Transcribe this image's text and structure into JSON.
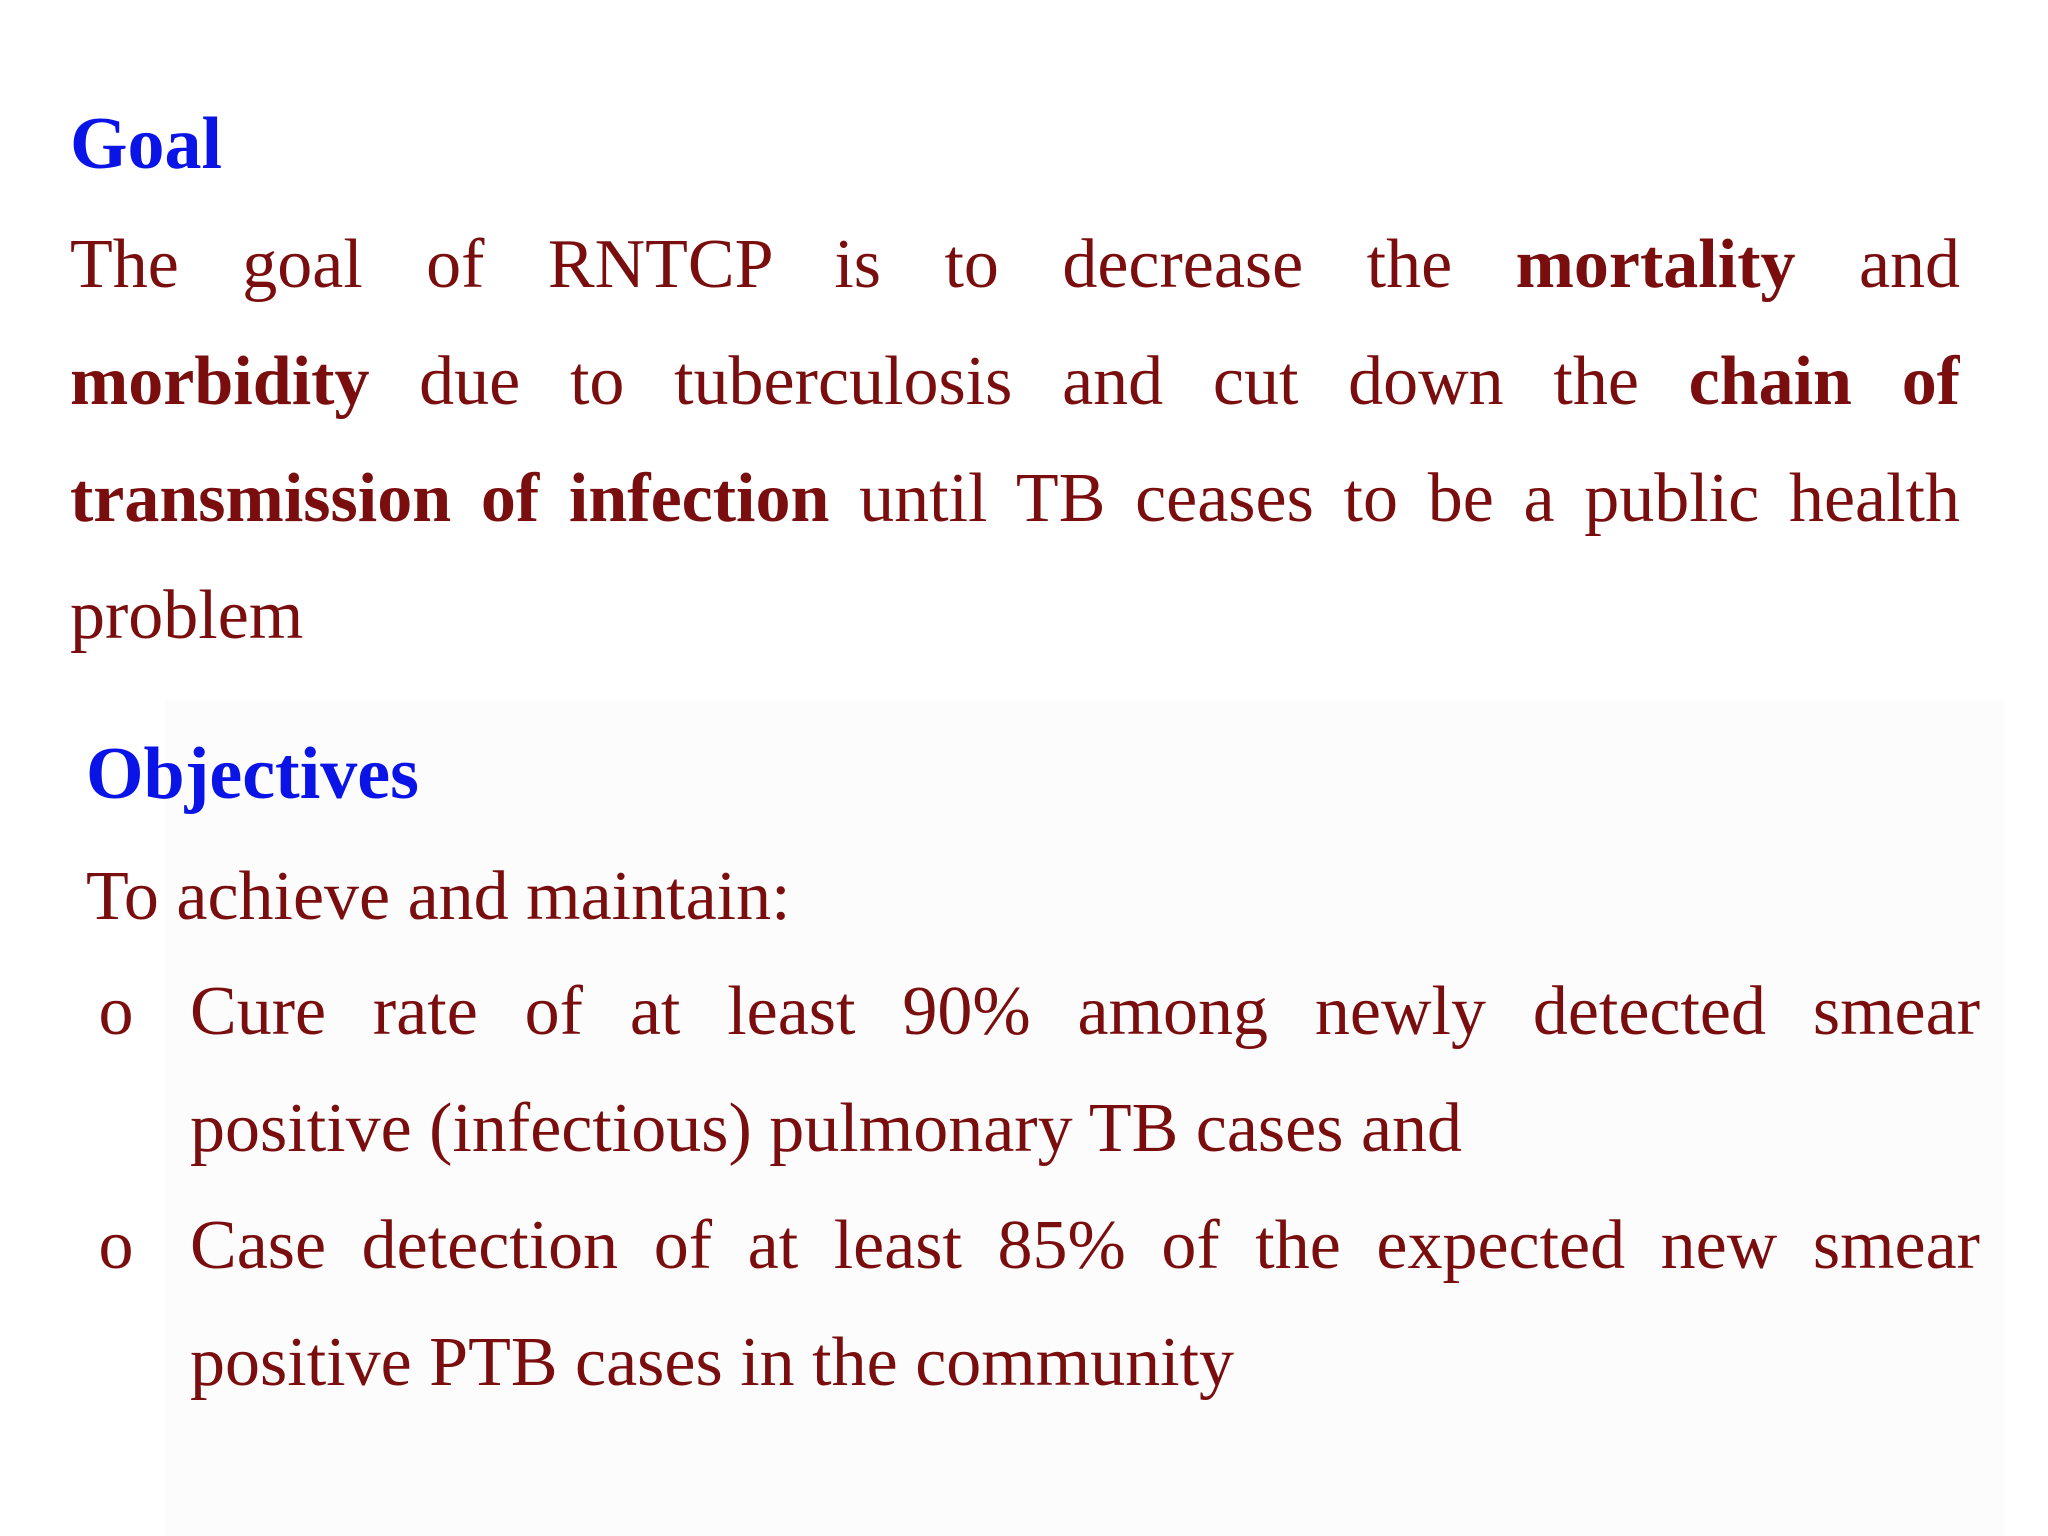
{
  "goal": {
    "heading": "Goal",
    "line1": {
      "pre": "The goal of RNTCP is to decrease the",
      "bold": "mortality",
      "post": "and"
    },
    "line2": {
      "bold1": "morbidity",
      "mid": "due to tuberculosis and cut down the",
      "bold2": "chain of"
    },
    "line3": {
      "bold": "transmission of infection",
      "post": "until TB ceases to be a public health"
    },
    "line4": "problem"
  },
  "objectives": {
    "heading": "Objectives",
    "intro": "To achieve and maintain:",
    "bullet_symbol": "o",
    "items": [
      {
        "line1": "Cure rate of at least 90% among newly detected smear",
        "line2": "positive (infectious) pulmonary TB cases and"
      },
      {
        "line1": "Case detection of at least 85% of the expected new smear",
        "line2": "positive PTB cases in the community"
      }
    ]
  },
  "colors": {
    "heading": "#0a14e6",
    "body_text": "#7a0d0d",
    "background": "#ffffff"
  }
}
